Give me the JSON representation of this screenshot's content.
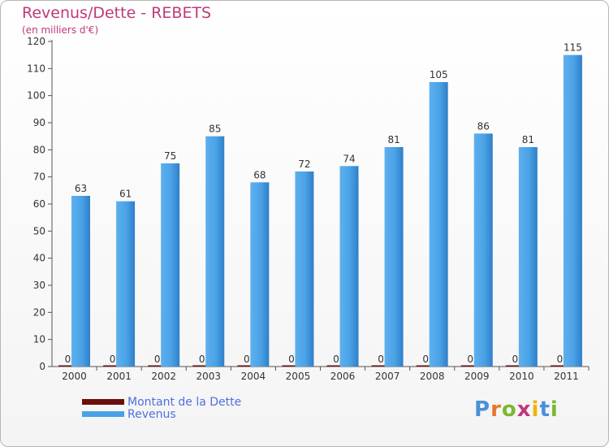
{
  "title": "Revenus/Dette - REBETS",
  "subtitle": "(en milliers d'€)",
  "logo": {
    "letters": [
      "P",
      "r",
      "o",
      "x",
      "i",
      "t",
      "i"
    ],
    "colors": [
      "#4a90d9",
      "#e8762c",
      "#7cb82f",
      "#c0387a",
      "#f0b400",
      "#4a90d9",
      "#7cb82f"
    ]
  },
  "colors": {
    "dette": "#6a0f0f",
    "revenus": "#4aa2e6",
    "revenus_dark": "#2f7fc8",
    "axis_text": "#333333"
  },
  "chart_data": {
    "type": "bar",
    "categories": [
      "2000",
      "2001",
      "2002",
      "2003",
      "2004",
      "2005",
      "2006",
      "2007",
      "2008",
      "2009",
      "2010",
      "2011"
    ],
    "series": [
      {
        "name": "Montant de la Dette",
        "values": [
          0,
          0,
          0,
          0,
          0,
          0,
          0,
          0,
          0,
          0,
          0,
          0
        ]
      },
      {
        "name": "Revenus",
        "values": [
          63,
          61,
          75,
          85,
          68,
          72,
          74,
          81,
          105,
          86,
          81,
          115
        ]
      }
    ],
    "title": "Revenus/Dette - REBETS",
    "ylabel": "(en milliers d'€)",
    "ylim": [
      0,
      120
    ],
    "yticks": [
      0,
      10,
      20,
      30,
      40,
      50,
      60,
      70,
      80,
      90,
      100,
      110,
      120
    ],
    "grid": false,
    "legend": "bottom-left"
  }
}
